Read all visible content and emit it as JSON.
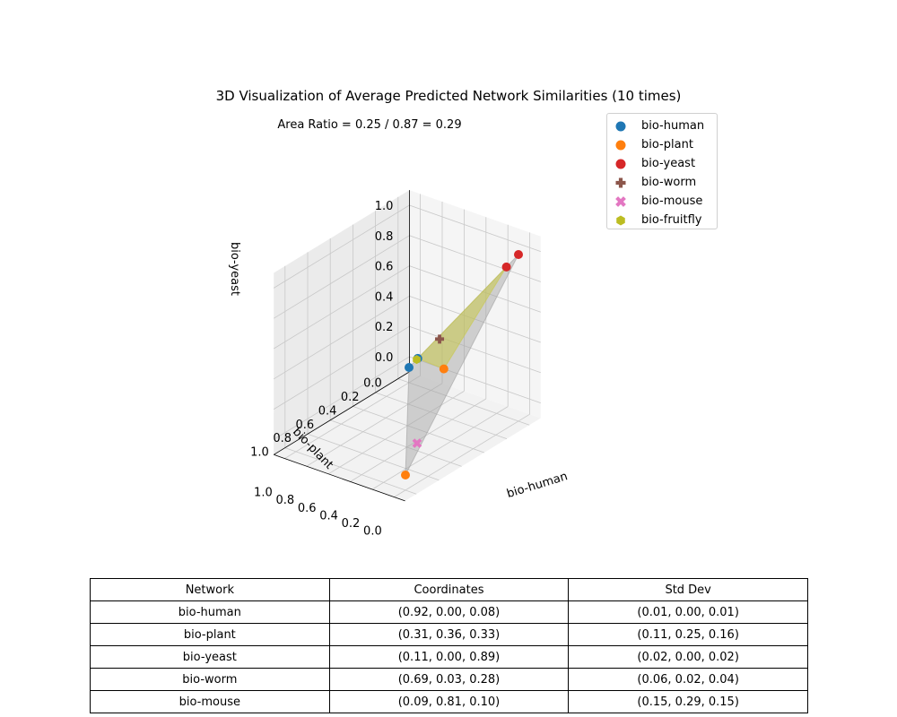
{
  "chart_data": {
    "type": "scatter",
    "title": "3D Visualization of Average Predicted Network Similarities (10 times)",
    "annotation": "Area Ratio = 0.25 / 0.87 = 0.29",
    "axes": {
      "x": {
        "label": "bio-human",
        "ticks": [
          "0.0",
          "0.2",
          "0.4",
          "0.6",
          "0.8",
          "1.0"
        ]
      },
      "y": {
        "label": "bio-plant",
        "ticks": [
          "0.0",
          "0.2",
          "0.4",
          "0.6",
          "0.8",
          "1.0"
        ]
      },
      "z": {
        "label": "bio-yeast",
        "ticks": [
          "0.0",
          "0.2",
          "0.4",
          "0.6",
          "0.8",
          "1.0"
        ]
      }
    },
    "grid": true,
    "legend_position": "top-right",
    "series": [
      {
        "name": "bio-human",
        "marker": "circle",
        "color": "#1f77b4",
        "points": [
          [
            0.92,
            0.0,
            0.08
          ],
          [
            1.0,
            0.0,
            0.0
          ]
        ]
      },
      {
        "name": "bio-plant",
        "marker": "circle",
        "color": "#ff7f0e",
        "points": [
          [
            0.31,
            0.36,
            0.33
          ],
          [
            0.0,
            1.0,
            0.0
          ]
        ]
      },
      {
        "name": "bio-yeast",
        "marker": "circle",
        "color": "#d62728",
        "points": [
          [
            0.11,
            0.0,
            0.89
          ],
          [
            0.0,
            0.0,
            1.0
          ]
        ]
      },
      {
        "name": "bio-worm",
        "marker": "plus",
        "color": "#8c564b",
        "points": [
          [
            0.69,
            0.03,
            0.28
          ]
        ]
      },
      {
        "name": "bio-mouse",
        "marker": "x",
        "color": "#e377c2",
        "points": [
          [
            0.09,
            0.81,
            0.1
          ]
        ]
      },
      {
        "name": "bio-fruitfly",
        "marker": "hexagon",
        "color": "#bcbd22",
        "points": [
          [
            0.93,
            0.0,
            0.07
          ]
        ]
      }
    ],
    "surfaces": [
      {
        "kind": "reference-triangle",
        "color": "#a0a0a0",
        "vertices": [
          [
            1,
            0,
            0
          ],
          [
            0,
            1,
            0
          ],
          [
            0,
            0,
            1
          ]
        ]
      },
      {
        "kind": "predicted-triangle",
        "color": "#c8c84a",
        "vertices": [
          [
            0.92,
            0.0,
            0.08
          ],
          [
            0.31,
            0.36,
            0.33
          ],
          [
            0.11,
            0.0,
            0.89
          ]
        ]
      }
    ]
  },
  "table": {
    "headers": [
      "Network",
      "Coordinates",
      "Std Dev"
    ],
    "rows": [
      [
        "bio-human",
        "(0.92, 0.00, 0.08)",
        "(0.01, 0.00, 0.01)"
      ],
      [
        "bio-plant",
        "(0.31, 0.36, 0.33)",
        "(0.11, 0.25, 0.16)"
      ],
      [
        "bio-yeast",
        "(0.11, 0.00, 0.89)",
        "(0.02, 0.00, 0.02)"
      ],
      [
        "bio-worm",
        "(0.69, 0.03, 0.28)",
        "(0.06, 0.02, 0.04)"
      ],
      [
        "bio-mouse",
        "(0.09, 0.81, 0.10)",
        "(0.15, 0.29, 0.15)"
      ]
    ]
  }
}
